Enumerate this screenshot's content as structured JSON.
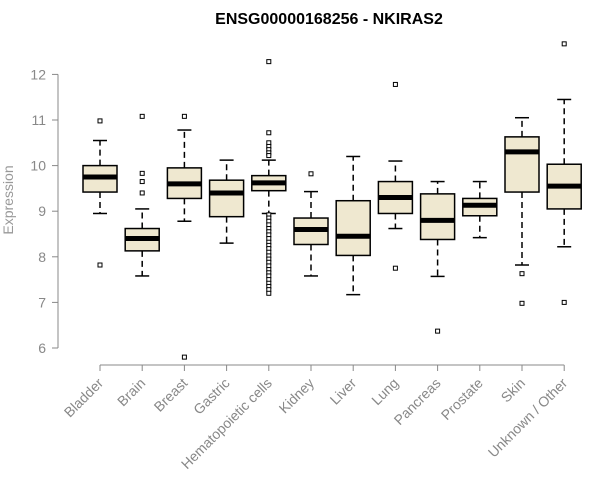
{
  "chart_data": {
    "type": "boxplot",
    "title": "ENSG00000168256 - NKIRAS2",
    "xlabel": "",
    "ylabel": "Expression",
    "ylim": [
      5.7,
      12.8
    ],
    "yticks": [
      6,
      7,
      8,
      9,
      10,
      11,
      12
    ],
    "categories": [
      "Bladder",
      "Brain",
      "Breast",
      "Gastric",
      "Hematopoietic cells",
      "Kidney",
      "Liver",
      "Lung",
      "Pancreas",
      "Prostate",
      "Skin",
      "Unknown / Other"
    ],
    "boxes": [
      {
        "name": "Bladder",
        "whisker_low": 8.95,
        "q1": 9.42,
        "median": 9.75,
        "q3": 10.0,
        "whisker_high": 10.55,
        "outliers": [
          10.98,
          7.82
        ]
      },
      {
        "name": "Brain",
        "whisker_low": 7.58,
        "q1": 8.13,
        "median": 8.4,
        "q3": 8.62,
        "whisker_high": 9.05,
        "outliers": [
          11.08,
          9.83,
          9.65,
          9.4
        ]
      },
      {
        "name": "Breast",
        "whisker_low": 8.78,
        "q1": 9.28,
        "median": 9.6,
        "q3": 9.95,
        "whisker_high": 10.78,
        "outliers": [
          11.08,
          5.8
        ]
      },
      {
        "name": "Gastric",
        "whisker_low": 8.3,
        "q1": 8.88,
        "median": 9.4,
        "q3": 9.68,
        "whisker_high": 10.12,
        "outliers": []
      },
      {
        "name": "Hematopoietic cells",
        "whisker_low": 8.95,
        "q1": 9.45,
        "median": 9.62,
        "q3": 9.78,
        "whisker_high": 10.12,
        "outliers": [
          12.28,
          10.72,
          10.5,
          10.42,
          10.35,
          10.28,
          10.22,
          8.92,
          8.85,
          8.78,
          8.7,
          8.62,
          8.55,
          8.48,
          8.4,
          8.32,
          8.25,
          8.18,
          8.1,
          8.02,
          7.95,
          7.88,
          7.8,
          7.72,
          7.65,
          7.58,
          7.5,
          7.42,
          7.35,
          7.28,
          7.2
        ]
      },
      {
        "name": "Kidney",
        "whisker_low": 7.58,
        "q1": 8.27,
        "median": 8.6,
        "q3": 8.85,
        "whisker_high": 9.43,
        "outliers": [
          9.82
        ]
      },
      {
        "name": "Liver",
        "whisker_low": 7.17,
        "q1": 8.03,
        "median": 8.45,
        "q3": 9.23,
        "whisker_high": 10.2,
        "outliers": []
      },
      {
        "name": "Lung",
        "whisker_low": 8.62,
        "q1": 8.95,
        "median": 9.3,
        "q3": 9.65,
        "whisker_high": 10.1,
        "outliers": [
          11.78,
          7.75
        ]
      },
      {
        "name": "Pancreas",
        "whisker_low": 7.57,
        "q1": 8.38,
        "median": 8.8,
        "q3": 9.38,
        "whisker_high": 9.65,
        "outliers": [
          6.37
        ]
      },
      {
        "name": "Prostate",
        "whisker_low": 8.42,
        "q1": 8.9,
        "median": 9.13,
        "q3": 9.28,
        "whisker_high": 9.65,
        "outliers": []
      },
      {
        "name": "Skin",
        "whisker_low": 7.82,
        "q1": 9.42,
        "median": 10.3,
        "q3": 10.63,
        "whisker_high": 11.05,
        "outliers": [
          7.63,
          6.98
        ]
      },
      {
        "name": "Unknown / Other",
        "whisker_low": 8.22,
        "q1": 9.05,
        "median": 9.55,
        "q3": 10.03,
        "whisker_high": 11.45,
        "outliers": [
          12.67,
          7.0
        ]
      }
    ],
    "box_fill": "#EFE8D0",
    "line_color": "#000000",
    "axis_color": "#888888",
    "grid": false
  }
}
